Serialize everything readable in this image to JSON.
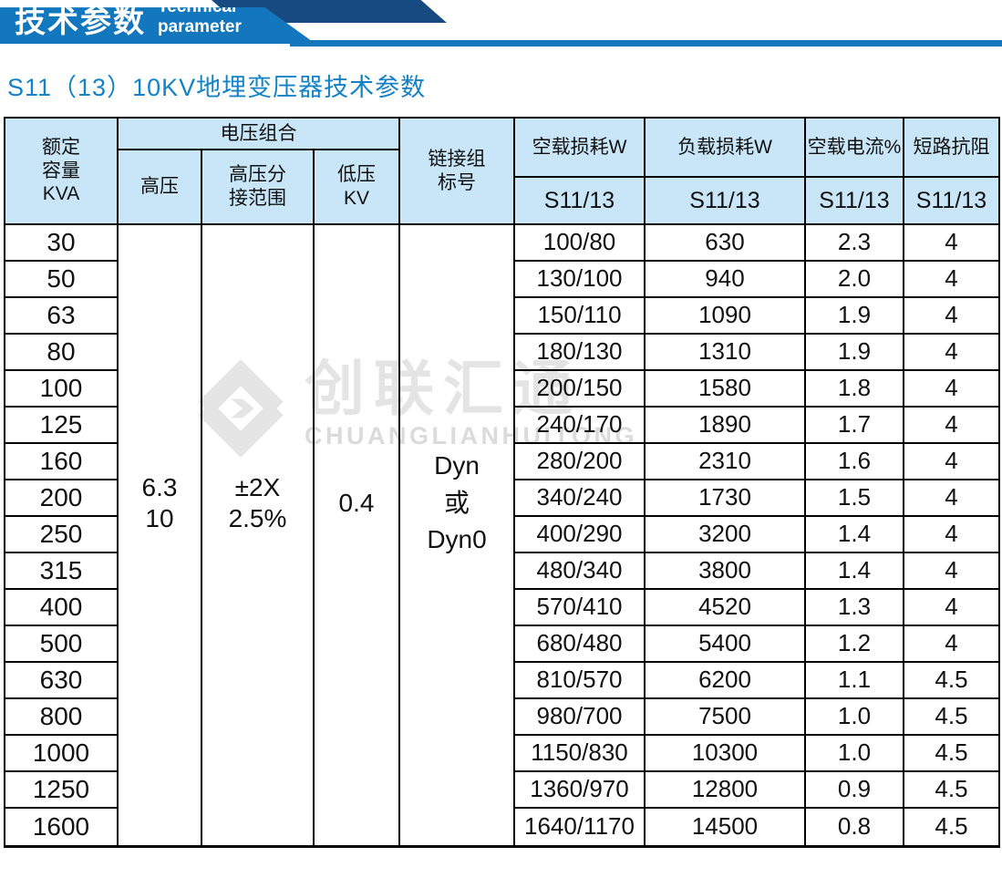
{
  "banner": {
    "title_zh": "技术参数",
    "title_en": "Technical parameter"
  },
  "page_title": "S11（13）10KV地埋变压器技术参数",
  "watermark": {
    "zh": "创联汇通",
    "en": "CHUANGLIANHUITONG",
    "color": "#e4e4e4"
  },
  "colors": {
    "banner_blue": "#1377bd",
    "banner_navy": "#164a80",
    "title_blue": "#1482c6",
    "header_bg": "#c8e6f8",
    "border": "#000000"
  },
  "table": {
    "headers": {
      "capacity": "额定\n容量\nKVA",
      "voltage_combo": "电压组合",
      "hv": "高压",
      "hv_tap": "高压分\n接范围",
      "lv": "低压\nKV",
      "vector_group": "链接组\n标号",
      "no_load_loss": "空载损耗W",
      "load_loss": "负载损耗W",
      "no_load_current": "空载电流%",
      "short_impedance": "短路抗阻",
      "s11_13": "S11/13"
    },
    "merged_values": {
      "hv": "6.3\n10",
      "hv_tap": "±2X\n2.5%",
      "lv": "0.4",
      "vector_group": "Dyn\n或\nDyn0"
    },
    "rows": [
      {
        "kva": "30",
        "noload": "100/80",
        "load": "630",
        "current": "2.3",
        "impedance": "4"
      },
      {
        "kva": "50",
        "noload": "130/100",
        "load": "940",
        "current": "2.0",
        "impedance": "4"
      },
      {
        "kva": "63",
        "noload": "150/110",
        "load": "1090",
        "current": "1.9",
        "impedance": "4"
      },
      {
        "kva": "80",
        "noload": "180/130",
        "load": "1310",
        "current": "1.9",
        "impedance": "4"
      },
      {
        "kva": "100",
        "noload": "200/150",
        "load": "1580",
        "current": "1.8",
        "impedance": "4"
      },
      {
        "kva": "125",
        "noload": "240/170",
        "load": "1890",
        "current": "1.7",
        "impedance": "4"
      },
      {
        "kva": "160",
        "noload": "280/200",
        "load": "2310",
        "current": "1.6",
        "impedance": "4"
      },
      {
        "kva": "200",
        "noload": "340/240",
        "load": "1730",
        "current": "1.5",
        "impedance": "4"
      },
      {
        "kva": "250",
        "noload": "400/290",
        "load": "3200",
        "current": "1.4",
        "impedance": "4"
      },
      {
        "kva": "315",
        "noload": "480/340",
        "load": "3800",
        "current": "1.4",
        "impedance": "4"
      },
      {
        "kva": "400",
        "noload": "570/410",
        "load": "4520",
        "current": "1.3",
        "impedance": "4"
      },
      {
        "kva": "500",
        "noload": "680/480",
        "load": "5400",
        "current": "1.2",
        "impedance": "4"
      },
      {
        "kva": "630",
        "noload": "810/570",
        "load": "6200",
        "current": "1.1",
        "impedance": "4.5"
      },
      {
        "kva": "800",
        "noload": "980/700",
        "load": "7500",
        "current": "1.0",
        "impedance": "4.5"
      },
      {
        "kva": "1000",
        "noload": "1150/830",
        "load": "10300",
        "current": "1.0",
        "impedance": "4.5"
      },
      {
        "kva": "1250",
        "noload": "1360/970",
        "load": "12800",
        "current": "0.9",
        "impedance": "4.5"
      },
      {
        "kva": "1600",
        "noload": "1640/1170",
        "load": "14500",
        "current": "0.8",
        "impedance": "4.5"
      }
    ]
  }
}
